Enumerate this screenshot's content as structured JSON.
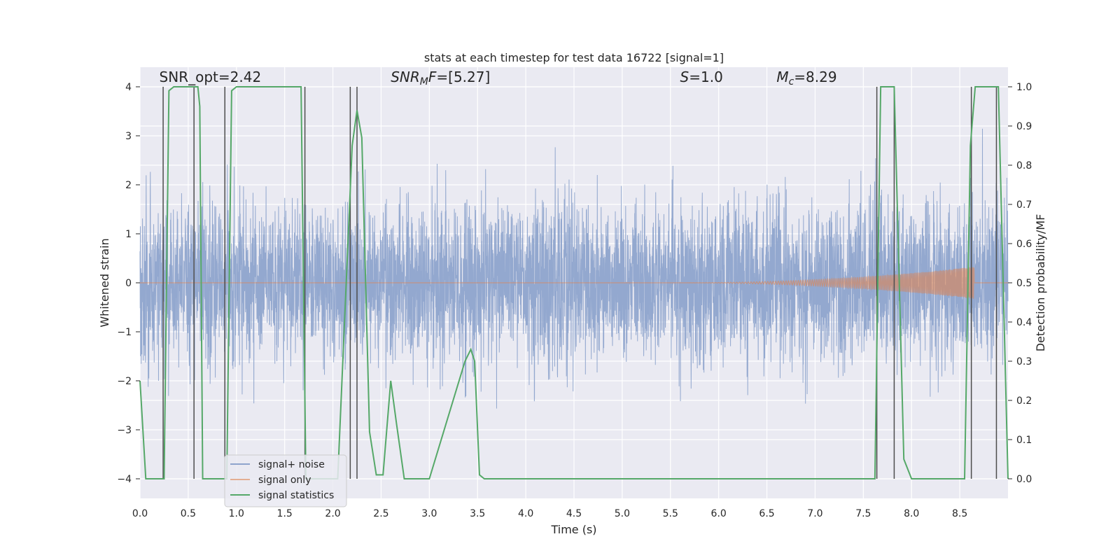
{
  "chart_data": {
    "type": "line",
    "title": "stats at each timestep for test data 16722 [signal=1]",
    "xlabel": "Time (s)",
    "ylabel_left": "Whitened strain",
    "ylabel_right": "Detection probability/MF",
    "xlim": [
      0.0,
      9.0
    ],
    "ylim_left": [
      -4.4,
      4.4
    ],
    "ylim_right": [
      -0.05,
      1.05
    ],
    "x_ticks": [
      "0.0",
      "0.5",
      "1.0",
      "1.5",
      "2.0",
      "2.5",
      "3.0",
      "3.5",
      "4.0",
      "4.5",
      "5.0",
      "5.5",
      "6.0",
      "6.5",
      "7.0",
      "7.5",
      "8.0",
      "8.5"
    ],
    "y_ticks_left": [
      "−4",
      "−3",
      "−2",
      "−1",
      "0",
      "1",
      "2",
      "3",
      "4"
    ],
    "y_ticks_right": [
      "0.0",
      "0.1",
      "0.2",
      "0.3",
      "0.4",
      "0.5",
      "0.6",
      "0.7",
      "0.8",
      "0.9",
      "1.0"
    ],
    "grid": true,
    "annotations": [
      {
        "text": "SNR_opt=2.42",
        "x": 0.2
      },
      {
        "text": "SNR_MF=[5.27]",
        "x": 2.6,
        "rich": "mf"
      },
      {
        "text": "S=1.0",
        "x": 5.6,
        "rich": "s"
      },
      {
        "text": "M_c=8.29",
        "x": 6.6,
        "rich": "mc"
      }
    ],
    "annotation_y": 4.1,
    "series": [
      {
        "name": "signal+ noise",
        "color": "#8ea4cc",
        "axis": "left",
        "kind": "noise",
        "std": 0.8,
        "duration": 9.0
      },
      {
        "name": "signal only",
        "color": "#dd8452",
        "axis": "left",
        "kind": "chirp",
        "start": 5.5,
        "end": 8.65,
        "max_amp": 0.33
      },
      {
        "name": "signal statistics",
        "color": "#55a868",
        "axis": "right",
        "x": [
          0.0,
          0.06,
          0.25,
          0.3,
          0.35,
          0.5,
          0.6,
          0.62,
          0.65,
          0.9,
          0.95,
          1.0,
          1.6,
          1.67,
          1.72,
          1.9,
          2.05,
          2.2,
          2.25,
          2.3,
          2.38,
          2.45,
          2.52,
          2.6,
          2.66,
          2.74,
          2.8,
          3.0,
          3.37,
          3.43,
          3.47,
          3.52,
          3.57,
          3.62,
          4.0,
          5.0,
          6.0,
          7.0,
          7.3,
          7.4,
          7.62,
          7.68,
          7.82,
          7.92,
          8.0,
          8.55,
          8.61,
          8.66,
          8.7,
          8.9,
          9.0
        ],
        "values": [
          0.25,
          0.0,
          0.0,
          0.99,
          1.0,
          1.0,
          1.0,
          0.95,
          0.0,
          0.0,
          0.99,
          1.0,
          1.0,
          1.0,
          0.0,
          0.0,
          0.0,
          0.85,
          0.94,
          0.87,
          0.12,
          0.01,
          0.01,
          0.25,
          0.14,
          0.0,
          0.0,
          0.0,
          0.3,
          0.33,
          0.3,
          0.01,
          0.0,
          0.0,
          0.0,
          0.0,
          0.0,
          0.0,
          0.0,
          0.0,
          0.0,
          1.0,
          1.0,
          0.05,
          0.0,
          0.0,
          0.85,
          1.0,
          1.0,
          1.0,
          0.0
        ]
      }
    ],
    "vlines": [
      0.24,
      0.56,
      0.88,
      1.71,
      2.18,
      2.25,
      7.64,
      7.82,
      8.62,
      8.88
    ]
  }
}
